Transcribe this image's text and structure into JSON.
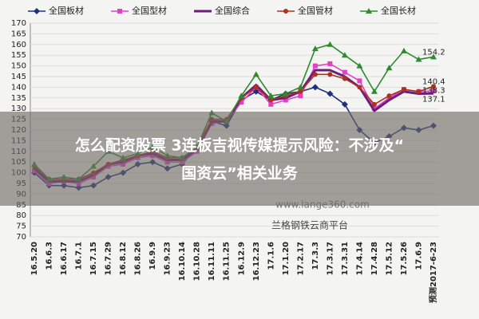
{
  "chart_data": {
    "type": "line",
    "categories": [
      "16.5.20",
      "16.6.3",
      "16.6.17",
      "16.7.1",
      "16.7.15",
      "16.7.29",
      "16.8.12",
      "16.8.26",
      "16.9.9",
      "16.9.23",
      "16.10.14",
      "16.10.28",
      "16.11.11",
      "16.11.25",
      "16.12.9",
      "16.12.23",
      "17.1.6",
      "17.1.20",
      "17.2.17",
      "17.3.3",
      "17.3.17",
      "17.3.31",
      "17.4.14",
      "17.4.28",
      "17.5.12",
      "17.5.26",
      "17.6.9",
      "预测2017-6-23"
    ],
    "series": [
      {
        "name": "全国板材",
        "color": "#1f2f7a",
        "marker": "diamond",
        "values": [
          100,
          94,
          94,
          93,
          94,
          98,
          100,
          104,
          105,
          102,
          104,
          112,
          124,
          122,
          134,
          138,
          134,
          137,
          138,
          140,
          137,
          132,
          120,
          114,
          117,
          121,
          120,
          122
        ]
      },
      {
        "name": "全国型材",
        "color": "#e040c8",
        "marker": "square",
        "values": [
          101,
          95,
          96,
          95,
          98,
          103,
          104,
          107,
          108,
          105,
          105,
          110,
          123,
          124,
          133,
          140,
          132,
          134,
          136,
          150,
          151,
          147,
          143,
          130,
          135,
          139,
          138,
          138.3
        ],
        "value_labels": [
          null,
          null,
          null,
          null,
          null,
          null,
          null,
          null,
          null,
          null,
          null,
          null,
          null,
          null,
          null,
          null,
          null,
          null,
          null,
          null,
          null,
          null,
          null,
          null,
          null,
          null,
          null,
          "138.3"
        ]
      },
      {
        "name": "全国综合",
        "color": "#6b1f7a",
        "marker": "none",
        "values": [
          102,
          96,
          96,
          96,
          99,
          104,
          105,
          108,
          109,
          106,
          106,
          111,
          124,
          124,
          135,
          141,
          134,
          135,
          138,
          148,
          148,
          145,
          140,
          129,
          134,
          138,
          137,
          137.1
        ],
        "value_labels": [
          null,
          null,
          null,
          null,
          null,
          null,
          null,
          null,
          null,
          null,
          null,
          null,
          null,
          null,
          null,
          null,
          null,
          null,
          null,
          null,
          null,
          null,
          null,
          null,
          null,
          null,
          null,
          "137.1"
        ]
      },
      {
        "name": "全国管材",
        "color": "#b0301e",
        "marker": "circle",
        "values": [
          103,
          97,
          97,
          97,
          100,
          104,
          106,
          108,
          110,
          107,
          107,
          112,
          125,
          125,
          135,
          140,
          134,
          136,
          138,
          146,
          146,
          144,
          140,
          132,
          136,
          139,
          138,
          140.4
        ],
        "value_labels": [
          null,
          null,
          null,
          null,
          null,
          null,
          null,
          null,
          null,
          null,
          null,
          null,
          null,
          null,
          null,
          null,
          null,
          null,
          null,
          null,
          null,
          null,
          null,
          null,
          null,
          null,
          null,
          "140.4"
        ]
      },
      {
        "name": "全国长材",
        "color": "#2e8b2e",
        "marker": "triangle",
        "values": [
          104,
          97,
          98,
          97,
          103,
          110,
          107,
          109,
          112,
          108,
          107,
          112,
          128,
          124,
          136,
          146,
          136,
          137,
          140,
          158,
          160,
          155,
          150,
          138,
          149,
          157,
          153,
          154.2
        ],
        "value_labels": [
          null,
          null,
          null,
          null,
          null,
          null,
          null,
          null,
          null,
          null,
          null,
          null,
          null,
          null,
          null,
          null,
          null,
          null,
          null,
          null,
          null,
          null,
          null,
          null,
          null,
          null,
          null,
          "154.2"
        ]
      }
    ],
    "ylim": [
      70,
      170
    ],
    "yticks": [
      70,
      75,
      80,
      85,
      90,
      95,
      100,
      105,
      110,
      115,
      120,
      125,
      130,
      135,
      140,
      145,
      150,
      155,
      160,
      165,
      170
    ],
    "grid": true,
    "watermark": [
      "www.lange360.com",
      "兰格钢铁云商平台"
    ]
  },
  "banner": [
    "怎么配资股票 3连板吉视传媒提示风险：不涉及“",
    "国资云”相关业务"
  ]
}
